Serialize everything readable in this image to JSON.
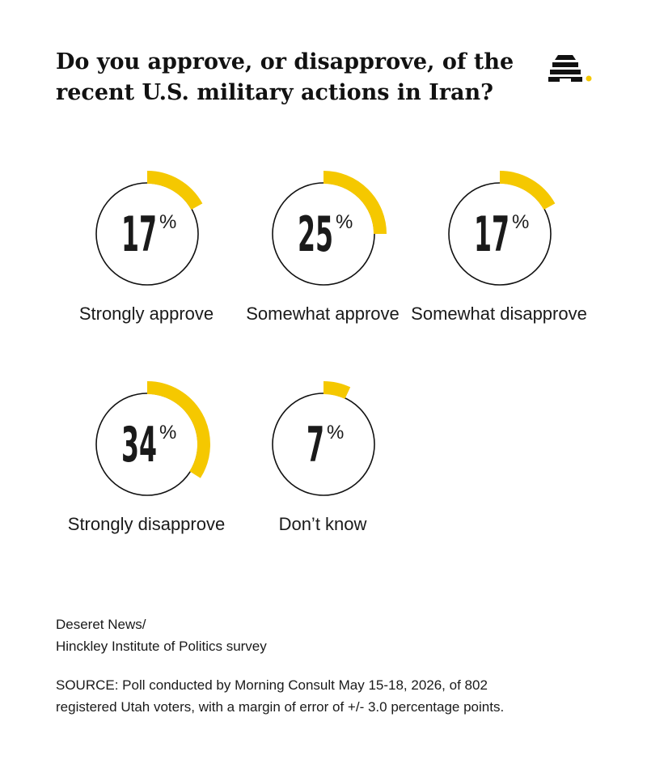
{
  "title_lines": [
    "Do you approve, or disapprove, of the",
    "recent U.S. military actions in Iran?"
  ],
  "logo": {
    "icon": "beehive-icon",
    "color": "#111111",
    "dot_color": "#F5C800"
  },
  "colors": {
    "accent": "#F5C800",
    "ring": "#111111"
  },
  "chart_data": {
    "type": "donut",
    "unit": "%",
    "title": "Do you approve, or disapprove, of the recent U.S. military actions in Iran?",
    "categories": [
      "Strongly approve",
      "Somewhat approve",
      "Somewhat disapprove",
      "Strongly disapprove",
      "Don’t know"
    ],
    "values": [
      17,
      25,
      17,
      34,
      7
    ]
  },
  "source": {
    "org_lines": [
      "Deseret News/",
      "Hinckley Institute of Politics survey"
    ],
    "note_lines": [
      "SOURCE: Poll conducted by Morning Consult May 15-18, 2026, of 802",
      "registered Utah voters, with a margin of error of +/- 3.0 percentage points."
    ]
  }
}
